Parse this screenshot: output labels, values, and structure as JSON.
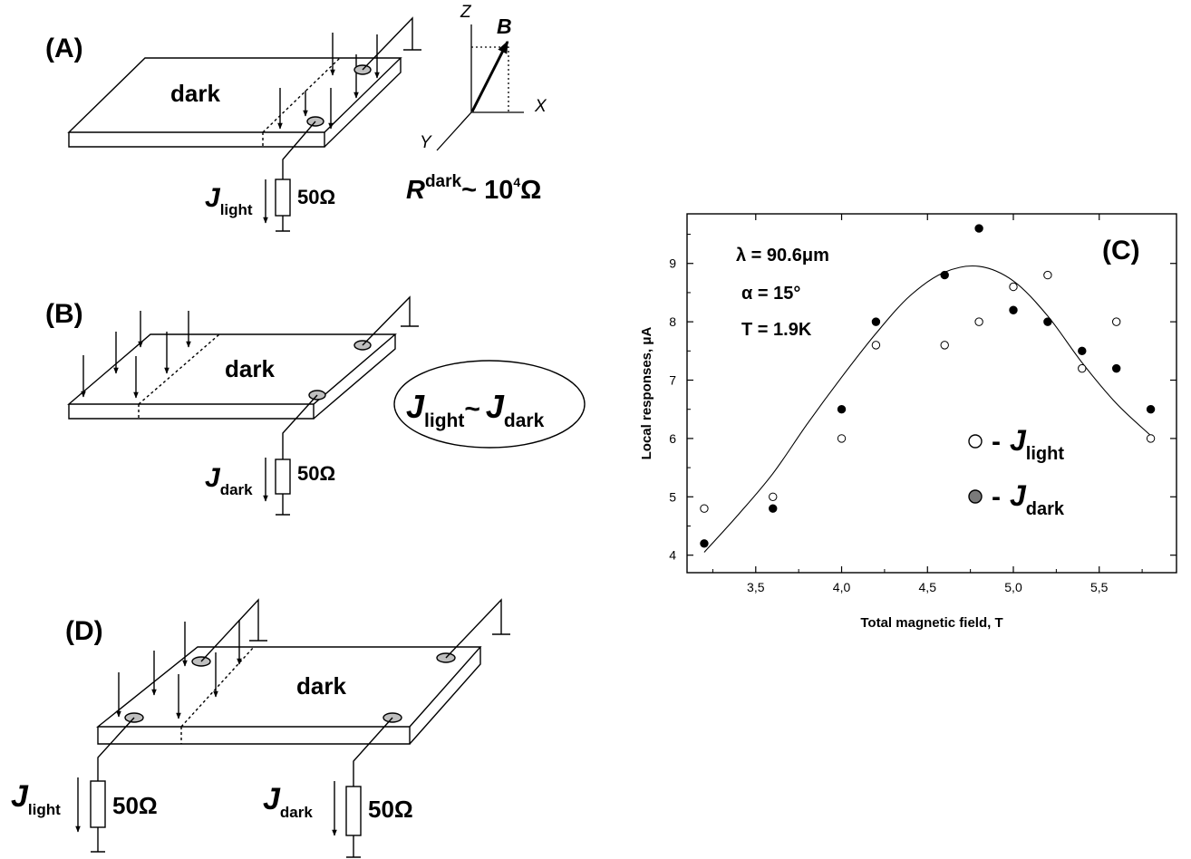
{
  "panels": {
    "A": {
      "label": "(A)",
      "region": "dark",
      "load": "50Ω",
      "current_J": "J",
      "current_sub": "light",
      "axes": {
        "z": "Z",
        "x": "X",
        "y": "Y",
        "b": "B"
      },
      "resistance": {
        "R": "R",
        "sup": "dark",
        "approx": "~ 10",
        "exp": "4",
        "unit": "Ω"
      }
    },
    "B": {
      "label": "(B)",
      "region": "dark",
      "load": "50Ω",
      "current_J": "J",
      "current_sub": "dark",
      "relation": {
        "J1": "J",
        "sub1": "light",
        "tilde": "~",
        "J2": "J",
        "sub2": "dark"
      }
    },
    "D": {
      "label": "(D)",
      "region": "dark",
      "left": {
        "J": "J",
        "sub": "light",
        "load": "50Ω"
      },
      "right": {
        "J": "J",
        "sub": "dark",
        "load": "50Ω"
      }
    },
    "C": {
      "label": "(C)",
      "params": {
        "lambda": "λ = 90.6μm",
        "alpha": "α = 15°",
        "temp": "T = 1.9K"
      },
      "legend": {
        "open": {
          "dash": "-",
          "J": "J",
          "sub": "light"
        },
        "filled": {
          "dash": "-",
          "J": "J",
          "sub": "dark"
        }
      }
    }
  },
  "chart_data": {
    "type": "scatter",
    "xlabel": "Total magnetic field, T",
    "ylabel": "Local responses, μA",
    "xlim": [
      3.1,
      5.95
    ],
    "ylim": [
      3.7,
      9.85
    ],
    "x_ticks": [
      "3,5",
      "4,0",
      "4,5",
      "5,0",
      "5,5"
    ],
    "x_tick_values": [
      3.5,
      4.0,
      4.5,
      5.0,
      5.5
    ],
    "y_ticks": [
      "4",
      "5",
      "6",
      "7",
      "8",
      "9"
    ],
    "y_tick_values": [
      4,
      5,
      6,
      7,
      8,
      9
    ],
    "series": [
      {
        "name": "J light",
        "marker": "open",
        "x": [
          3.2,
          3.6,
          4.0,
          4.2,
          4.6,
          4.8,
          5.0,
          5.2,
          5.4,
          5.6,
          5.8
        ],
        "y": [
          4.8,
          5.0,
          6.0,
          7.6,
          7.6,
          8.0,
          8.6,
          8.8,
          7.2,
          8.0,
          6.0
        ]
      },
      {
        "name": "J dark",
        "marker": "filled",
        "x": [
          3.2,
          3.6,
          4.0,
          4.2,
          4.6,
          4.8,
          5.0,
          5.2,
          5.4,
          5.6,
          5.8
        ],
        "y": [
          4.2,
          4.8,
          6.5,
          8.0,
          8.8,
          9.6,
          8.2,
          8.0,
          7.5,
          7.2,
          6.5
        ]
      }
    ],
    "fit_curve": {
      "x": [
        3.2,
        3.4,
        3.6,
        3.8,
        4.0,
        4.2,
        4.4,
        4.6,
        4.8,
        5.0,
        5.2,
        5.4,
        5.6,
        5.8
      ],
      "y": [
        4.05,
        4.7,
        5.4,
        6.25,
        7.05,
        7.8,
        8.45,
        8.85,
        8.95,
        8.7,
        8.1,
        7.3,
        6.6,
        6.05
      ]
    },
    "grid": false,
    "legend_position": "right"
  }
}
